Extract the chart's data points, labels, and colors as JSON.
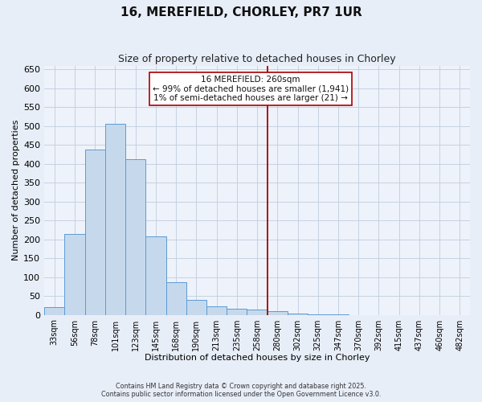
{
  "title": "16, MEREFIELD, CHORLEY, PR7 1UR",
  "subtitle": "Size of property relative to detached houses in Chorley",
  "xlabel": "Distribution of detached houses by size in Chorley",
  "ylabel": "Number of detached properties",
  "bar_labels": [
    "33sqm",
    "56sqm",
    "78sqm",
    "101sqm",
    "123sqm",
    "145sqm",
    "168sqm",
    "190sqm",
    "213sqm",
    "235sqm",
    "258sqm",
    "280sqm",
    "302sqm",
    "325sqm",
    "347sqm",
    "370sqm",
    "392sqm",
    "415sqm",
    "437sqm",
    "460sqm",
    "482sqm"
  ],
  "bar_values": [
    20,
    215,
    437,
    507,
    413,
    207,
    87,
    39,
    22,
    17,
    15,
    10,
    3,
    2,
    1,
    0,
    0,
    0,
    0,
    0,
    0
  ],
  "bar_color": "#c6d9ec",
  "bar_edge_color": "#5b9bd5",
  "ylim": [
    0,
    660
  ],
  "yticks": [
    0,
    50,
    100,
    150,
    200,
    250,
    300,
    350,
    400,
    450,
    500,
    550,
    600,
    650
  ],
  "vline_color": "#aa0000",
  "annotation_title": "16 MEREFIELD: 260sqm",
  "annotation_line1": "← 99% of detached houses are smaller (1,941)",
  "annotation_line2": "1% of semi-detached houses are larger (21) →",
  "footer_line1": "Contains HM Land Registry data © Crown copyright and database right 2025.",
  "footer_line2": "Contains public sector information licensed under the Open Government Licence v3.0.",
  "background_color": "#e8eef8",
  "plot_background_color": "#eef2fa",
  "grid_color": "#c0ccdd"
}
